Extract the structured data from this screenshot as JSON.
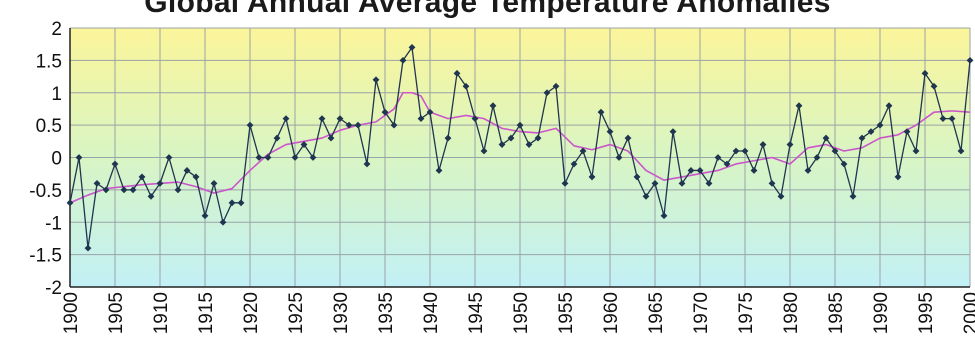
{
  "chart_data": {
    "type": "line",
    "title": "Global Annual Average Temperature Anomalies",
    "xlabel": "",
    "ylabel": "",
    "xlim": [
      1900,
      2000
    ],
    "ylim": [
      -2,
      2
    ],
    "x_ticks": [
      "1900",
      "1905",
      "1910",
      "1915",
      "1920",
      "1925",
      "1930",
      "1935",
      "1940",
      "1945",
      "1950",
      "1955",
      "1960",
      "1965",
      "1970",
      "1975",
      "1980",
      "1985",
      "1990",
      "1995",
      "2000"
    ],
    "y_ticks": [
      "2",
      "1.5",
      "1",
      "0.5",
      "0",
      "-0.5",
      "-1",
      "-1.5",
      "-2"
    ],
    "grid": true,
    "legend": "none",
    "background_gradient": [
      "#fbf59a",
      "#d8f5c4",
      "#c2f0f6"
    ],
    "series": [
      {
        "color": "#1f3550",
        "marker": "diamond",
        "x": [
          1900,
          1901,
          1902,
          1903,
          1904,
          1905,
          1906,
          1907,
          1908,
          1909,
          1910,
          1911,
          1912,
          1913,
          1914,
          1915,
          1916,
          1917,
          1918,
          1919,
          1920,
          1921,
          1922,
          1923,
          1924,
          1925,
          1926,
          1927,
          1928,
          1929,
          1930,
          1931,
          1932,
          1933,
          1934,
          1935,
          1936,
          1937,
          1938,
          1939,
          1940,
          1941,
          1942,
          1943,
          1944,
          1945,
          1946,
          1947,
          1948,
          1949,
          1950,
          1951,
          1952,
          1953,
          1954,
          1955,
          1956,
          1957,
          1958,
          1959,
          1960,
          1961,
          1962,
          1963,
          1964,
          1965,
          1966,
          1967,
          1968,
          1969,
          1970,
          1971,
          1972,
          1973,
          1974,
          1975,
          1976,
          1977,
          1978,
          1979,
          1980,
          1981,
          1982,
          1983,
          1984,
          1985,
          1986,
          1987,
          1988,
          1989,
          1990,
          1991,
          1992,
          1993,
          1994,
          1995,
          1996,
          1997,
          1998,
          1999,
          2000
        ],
        "y": [
          -0.7,
          0.0,
          -1.4,
          -0.4,
          -0.5,
          -0.1,
          -0.5,
          -0.5,
          -0.3,
          -0.6,
          -0.4,
          0.0,
          -0.5,
          -0.2,
          -0.3,
          -0.9,
          -0.4,
          -1.0,
          -0.7,
          -0.7,
          0.5,
          0.0,
          0.0,
          0.3,
          0.6,
          0.0,
          0.2,
          0.0,
          0.6,
          0.3,
          0.6,
          0.5,
          0.5,
          -0.1,
          1.2,
          0.7,
          0.5,
          1.5,
          1.7,
          0.6,
          0.7,
          -0.2,
          0.3,
          1.3,
          1.1,
          0.6,
          0.1,
          0.8,
          0.2,
          0.3,
          0.5,
          0.2,
          0.3,
          1.0,
          1.1,
          -0.4,
          -0.1,
          0.1,
          -0.3,
          0.7,
          0.4,
          0.0,
          0.3,
          -0.3,
          -0.6,
          -0.4,
          -0.9,
          0.4,
          -0.4,
          -0.2,
          -0.2,
          -0.4,
          0.0,
          -0.1,
          0.1,
          0.1,
          -0.2,
          0.2,
          -0.4,
          -0.6,
          0.2,
          0.8,
          -0.2,
          0.0,
          0.3,
          0.1,
          -0.1,
          -0.6,
          0.3,
          0.4,
          0.5,
          0.8,
          -0.3,
          0.4,
          0.1,
          1.3,
          1.1,
          0.6,
          0.6,
          0.1,
          1.5
        ]
      },
      {
        "color": "#cc55cc",
        "marker": "none",
        "x": [
          1900,
          1902,
          1904,
          1906,
          1908,
          1910,
          1912,
          1914,
          1916,
          1918,
          1920,
          1922,
          1924,
          1926,
          1928,
          1930,
          1932,
          1934,
          1936,
          1937,
          1938,
          1939,
          1940,
          1942,
          1944,
          1946,
          1948,
          1950,
          1952,
          1954,
          1956,
          1958,
          1960,
          1962,
          1964,
          1966,
          1968,
          1970,
          1972,
          1974,
          1976,
          1978,
          1980,
          1982,
          1984,
          1986,
          1988,
          1990,
          1992,
          1994,
          1996,
          1998,
          2000
        ],
        "y": [
          -0.7,
          -0.58,
          -0.48,
          -0.45,
          -0.42,
          -0.4,
          -0.38,
          -0.45,
          -0.55,
          -0.48,
          -0.2,
          0.05,
          0.2,
          0.25,
          0.3,
          0.42,
          0.5,
          0.55,
          0.75,
          1.0,
          1.0,
          0.95,
          0.7,
          0.6,
          0.65,
          0.6,
          0.45,
          0.4,
          0.38,
          0.45,
          0.18,
          0.12,
          0.2,
          0.1,
          -0.2,
          -0.35,
          -0.3,
          -0.25,
          -0.2,
          -0.1,
          -0.05,
          0.0,
          -0.1,
          0.15,
          0.2,
          0.1,
          0.15,
          0.3,
          0.35,
          0.5,
          0.7,
          0.72,
          0.7
        ]
      }
    ]
  }
}
